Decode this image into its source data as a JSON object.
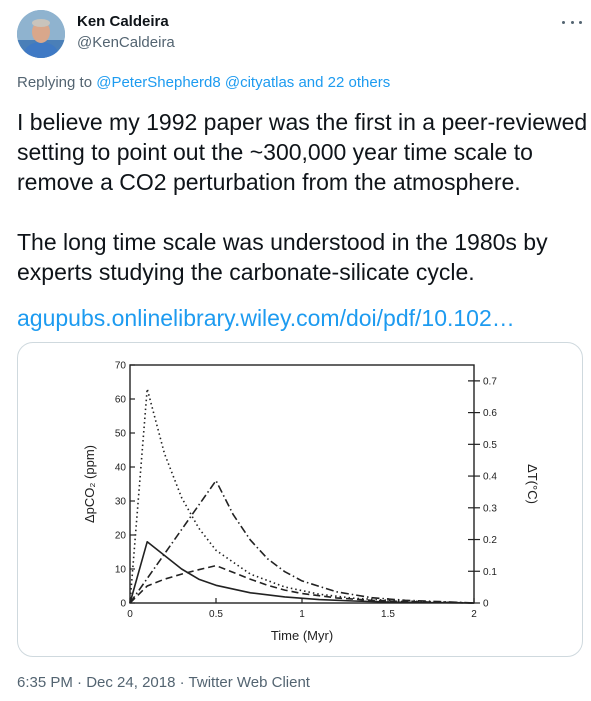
{
  "author": {
    "name": "Ken Caldeira",
    "handle": "@KenCaldeira"
  },
  "reply": {
    "prefix": "Replying to",
    "mention1": "@PeterShepherd8",
    "mention2": "@cityatlas",
    "suffix": "and 22 others"
  },
  "tweet": {
    "line1": "I believe my 1992 paper was the first in a peer-reviewed",
    "line2": "setting to point out the ~300,000 year time scale to",
    "line3": "remove a CO2 perturbation from the atmosphere.",
    "line4": "The long time scale was understood in the 1980s by",
    "line5": "experts studying the carbonate-silicate cycle.",
    "link": "agupubs.onlinelibrary.wiley.com/doi/pdf/10.102…"
  },
  "meta": {
    "time": "6:35 PM",
    "sep1": "·",
    "date": "Dec 24, 2018",
    "sep2": "·",
    "client": "Twitter Web Client"
  },
  "icons": {
    "more": "more-horizontal-icon"
  },
  "colors": {
    "accent": "#1d9bf0",
    "secondary_text": "#536471",
    "primary_text": "#0f1419"
  },
  "chart_data": {
    "type": "line",
    "xlabel": "Time (Myr)",
    "ylabel": "ΔpCO₂ (ppm)",
    "y2label": "ΔT(°C)",
    "xlim": [
      0,
      2
    ],
    "ylim": [
      0,
      70
    ],
    "y2lim": [
      0,
      0.75
    ],
    "x_ticks": [
      "0",
      "0.5",
      "1",
      "1.5",
      "2"
    ],
    "x_tick_values": [
      0,
      0.5,
      1,
      1.5,
      2
    ],
    "y_ticks": [
      "0",
      "10",
      "20",
      "30",
      "40",
      "50",
      "60",
      "70"
    ],
    "y_tick_values": [
      0,
      10,
      20,
      30,
      40,
      50,
      60,
      70
    ],
    "y2_ticks": [
      "0",
      "0.1",
      "0.2",
      "0.3",
      "0.4",
      "0.5",
      "0.6",
      "0.7"
    ],
    "y2_tick_values": [
      0,
      0.1,
      0.2,
      0.3,
      0.4,
      0.5,
      0.6,
      0.7
    ],
    "series": [
      {
        "style": "solid",
        "x": [
          0,
          0.1,
          0.2,
          0.3,
          0.4,
          0.5,
          0.7,
          0.9,
          1.1,
          1.3,
          1.5,
          1.7,
          1.9,
          2.0
        ],
        "y": [
          0,
          18,
          14,
          10,
          7,
          5.2,
          3,
          1.8,
          1,
          0.6,
          0.3,
          0.15,
          0.05,
          0
        ]
      },
      {
        "style": "dotted",
        "x": [
          0,
          0.1,
          0.2,
          0.3,
          0.4,
          0.5,
          0.7,
          0.9,
          1.1,
          1.3,
          1.5,
          1.7,
          1.9,
          2.0
        ],
        "y": [
          0,
          63,
          44,
          31,
          22,
          15.5,
          8.5,
          4.7,
          2.6,
          1.4,
          0.8,
          0.4,
          0.15,
          0
        ]
      },
      {
        "style": "dash-dot",
        "x": [
          0,
          0.5,
          0.6,
          0.7,
          0.8,
          0.9,
          1.0,
          1.2,
          1.4,
          1.6,
          1.8,
          2.0
        ],
        "y": [
          0,
          36,
          26,
          18.5,
          13,
          9.2,
          6.5,
          3.3,
          1.6,
          0.8,
          0.4,
          0
        ]
      },
      {
        "style": "dashed",
        "x": [
          0,
          0.1,
          0.2,
          0.3,
          0.4,
          0.5,
          0.6,
          0.7,
          0.8,
          0.9,
          1.0,
          1.2,
          1.4,
          1.6,
          1.8,
          2.0
        ],
        "y": [
          0,
          5,
          7,
          8.5,
          9.8,
          11,
          9,
          7,
          5.2,
          3.8,
          2.8,
          1.5,
          0.8,
          0.4,
          0.2,
          0
        ]
      }
    ]
  }
}
